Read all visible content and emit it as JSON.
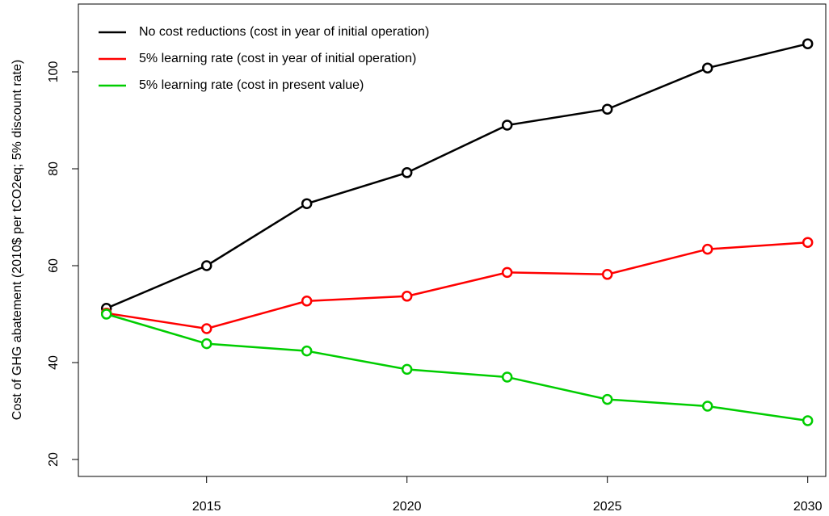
{
  "chart_data": {
    "type": "line",
    "ylabel": "Cost of GHG abatement (2010$ per tCO2eq; 5% discount rate)",
    "x": [
      2012.5,
      2015,
      2017.5,
      2020,
      2022.5,
      2025,
      2027.5,
      2030
    ],
    "series": [
      {
        "name": "No cost reductions (cost in year of initial operation)",
        "color": "#000000",
        "values": [
          51.2,
          60,
          72.8,
          79.2,
          89,
          92.3,
          100.8,
          105.8
        ]
      },
      {
        "name": "5% learning rate (cost in year of initial operation)",
        "color": "#ff0000",
        "values": [
          50.2,
          47,
          52.7,
          53.7,
          58.6,
          58.2,
          63.4,
          64.8
        ]
      },
      {
        "name": "5% learning rate (cost in present value)",
        "color": "#00cd00",
        "values": [
          50,
          43.9,
          42.4,
          38.6,
          37,
          32.4,
          31,
          28
        ]
      }
    ],
    "xlim": [
      2011.8,
      2030.45
    ],
    "xticks": [
      2015,
      2020,
      2025,
      2030
    ],
    "ylim": [
      16.5,
      114
    ],
    "yticks": [
      20,
      40,
      60,
      80,
      100
    ],
    "legend": "top-left",
    "grid": false
  }
}
